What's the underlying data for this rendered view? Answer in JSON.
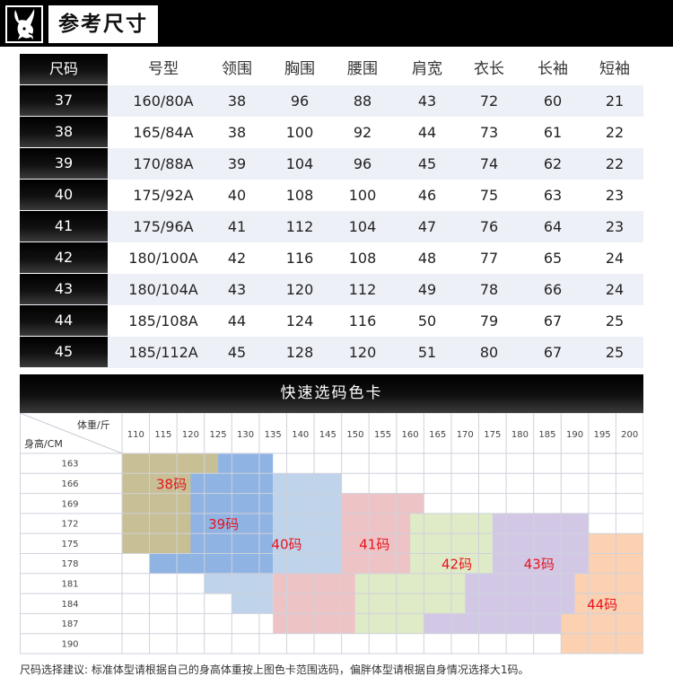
{
  "header": {
    "title": "参考尺寸",
    "logo_icon": "playboy-bunny-icon"
  },
  "size_table": {
    "headers": [
      "尺码",
      "号型",
      "领围",
      "胸围",
      "腰围",
      "肩宽",
      "衣长",
      "长袖",
      "短袖"
    ],
    "rows": [
      [
        "37",
        "160/80A",
        "38",
        "96",
        "88",
        "43",
        "72",
        "60",
        "21"
      ],
      [
        "38",
        "165/84A",
        "38",
        "100",
        "92",
        "44",
        "73",
        "61",
        "22"
      ],
      [
        "39",
        "170/88A",
        "39",
        "104",
        "96",
        "45",
        "74",
        "62",
        "22"
      ],
      [
        "40",
        "175/92A",
        "40",
        "108",
        "100",
        "46",
        "75",
        "63",
        "23"
      ],
      [
        "41",
        "175/96A",
        "41",
        "112",
        "104",
        "47",
        "76",
        "64",
        "23"
      ],
      [
        "42",
        "180/100A",
        "42",
        "116",
        "108",
        "48",
        "77",
        "65",
        "24"
      ],
      [
        "43",
        "180/104A",
        "43",
        "120",
        "112",
        "49",
        "78",
        "66",
        "24"
      ],
      [
        "44",
        "185/108A",
        "44",
        "124",
        "116",
        "50",
        "79",
        "67",
        "25"
      ],
      [
        "45",
        "185/112A",
        "45",
        "128",
        "120",
        "51",
        "80",
        "67",
        "25"
      ]
    ]
  },
  "color_card": {
    "title": "快速选码色卡",
    "weight_label": "体重/斤",
    "height_label": "身高/CM",
    "weights": [
      "110",
      "115",
      "120",
      "125",
      "130",
      "135",
      "140",
      "145",
      "150",
      "155",
      "160",
      "165",
      "170",
      "175",
      "180",
      "185",
      "190",
      "195",
      "200"
    ],
    "heights": [
      "163",
      "166",
      "169",
      "172",
      "175",
      "178",
      "181",
      "184",
      "187",
      "190"
    ],
    "zones": [
      {
        "label": "38码",
        "color": "#c8bf94"
      },
      {
        "label": "39码",
        "color": "#8fb3e3"
      },
      {
        "label": "40码",
        "color": "#bfd3ea"
      },
      {
        "label": "41码",
        "color": "#eec3c6"
      },
      {
        "label": "42码",
        "color": "#dfeac6"
      },
      {
        "label": "43码",
        "color": "#d2c8e6"
      },
      {
        "label": "44码",
        "color": "#fbd1b2"
      }
    ],
    "label_color": "#e8141c"
  },
  "note": "尺码选择建议: 标准体型请根据自己的身高体重按上图色卡范围选码，偏胖体型请根据自身情况选择大1码。"
}
